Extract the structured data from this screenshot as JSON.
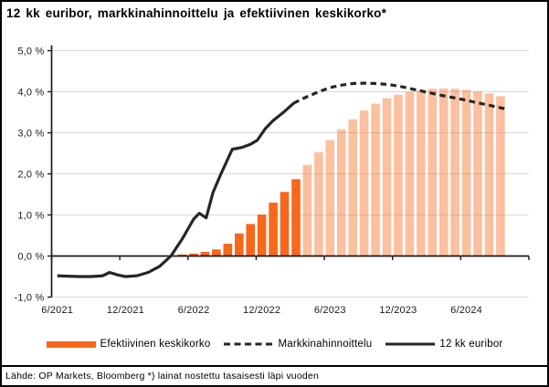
{
  "title": "12 kk euribor, markkinahinnoittelu ja efektiivinen keskikorko*",
  "footer": "Lähde: OP Markets, Bloomberg *) lainat nostettu tasaisesti läpi vuoden",
  "colors": {
    "orange": "#F6681C",
    "forecast_bar_opacity": 0.42,
    "line": "#262626",
    "grid": "#D9D9D9",
    "axis": "#1A1A1A",
    "background": "#FFFFFF",
    "border": "#000000"
  },
  "legend": [
    {
      "label": "Efektiivinen keskikorko",
      "swatch": "orange-bar"
    },
    {
      "label": "Markkinahinnoittelu",
      "swatch": "dashed-line"
    },
    {
      "label": "12 kk euribor",
      "swatch": "solid-line"
    }
  ],
  "chart_data": {
    "type": "bar+line combo",
    "x_unit": "months, index 0 = 6/2021",
    "x_range": [
      "6/2021",
      "11/2024"
    ],
    "x_tick_labels": [
      "6/2021",
      "12/2021",
      "6/2022",
      "12/2022",
      "6/2023",
      "12/2023",
      "6/2024"
    ],
    "y_tick_labels": [
      "5,0 %",
      "4,0 %",
      "3,0 %",
      "2,0 %",
      "1,0 %",
      "0,0 %",
      "-1,0 %"
    ],
    "y_tick_values": [
      5,
      4,
      3,
      2,
      1,
      0,
      -1
    ],
    "ylim": [
      -1.0,
      5.0
    ],
    "y_unit": "%",
    "grid": "horizontal",
    "legend_position": "bottom",
    "series": [
      {
        "name": "Efektiivinen keskikorko (toteutunut)",
        "type": "bar",
        "style": "solid",
        "start_month": "5/2022",
        "values": [
          0.04,
          0.06,
          0.1,
          0.16,
          0.3,
          0.55,
          0.78,
          1.01,
          1.3,
          1.56,
          1.87
        ]
      },
      {
        "name": "Efektiivinen keskikorko (ennuste)",
        "type": "bar",
        "style": "light",
        "start_month": "4/2023",
        "values": [
          2.22,
          2.53,
          2.82,
          3.08,
          3.33,
          3.54,
          3.71,
          3.84,
          3.93,
          4.0,
          4.04,
          4.07,
          4.08,
          4.07,
          4.05,
          4.01,
          3.96,
          3.89
        ]
      },
      {
        "name": "12 kk euribor",
        "type": "line",
        "style": "solid",
        "points": [
          [
            0,
            -0.48
          ],
          [
            1,
            -0.49
          ],
          [
            2,
            -0.5
          ],
          [
            3,
            -0.5
          ],
          [
            4,
            -0.48
          ],
          [
            4.6,
            -0.4
          ],
          [
            5.3,
            -0.46
          ],
          [
            6,
            -0.5
          ],
          [
            7,
            -0.48
          ],
          [
            8,
            -0.4
          ],
          [
            9,
            -0.25
          ],
          [
            10,
            0.0
          ],
          [
            11,
            0.42
          ],
          [
            12,
            0.9
          ],
          [
            12.5,
            1.04
          ],
          [
            13.1,
            0.93
          ],
          [
            13.7,
            1.55
          ],
          [
            14.4,
            2.0
          ],
          [
            15.4,
            2.6
          ],
          [
            16.2,
            2.64
          ],
          [
            17,
            2.72
          ],
          [
            17.6,
            2.82
          ],
          [
            18.3,
            3.1
          ],
          [
            19,
            3.3
          ],
          [
            20,
            3.52
          ],
          [
            20.8,
            3.72
          ]
        ]
      },
      {
        "name": "Markkinahinnoittelu",
        "type": "line",
        "style": "dashed",
        "points": [
          [
            20.8,
            3.72
          ],
          [
            21.5,
            3.82
          ],
          [
            22,
            3.88
          ],
          [
            23,
            4.0
          ],
          [
            24,
            4.1
          ],
          [
            25,
            4.16
          ],
          [
            26,
            4.2
          ],
          [
            27,
            4.21
          ],
          [
            28,
            4.2
          ],
          [
            29,
            4.18
          ],
          [
            30,
            4.14
          ],
          [
            31,
            4.08
          ],
          [
            32,
            4.02
          ],
          [
            33,
            3.96
          ],
          [
            34,
            3.9
          ],
          [
            35,
            3.85
          ],
          [
            36,
            3.79
          ],
          [
            37,
            3.73
          ],
          [
            38,
            3.67
          ],
          [
            39,
            3.61
          ],
          [
            39.5,
            3.58
          ]
        ]
      }
    ]
  }
}
